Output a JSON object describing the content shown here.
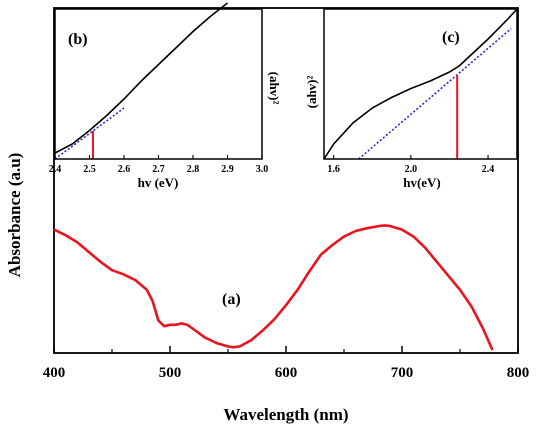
{
  "chart_data": [
    {
      "panel": "(a)",
      "type": "line",
      "xlabel": "Wavelength (nm)",
      "ylabel": "Absorbance (a.u)",
      "xlim": [
        400,
        800
      ],
      "x_ticks": [
        "400",
        "500",
        "600",
        "700",
        "800"
      ],
      "y_ticks_shown": false,
      "grid": false,
      "series": [
        {
          "color": "#e8141e",
          "x": [
            400,
            410,
            420,
            430,
            440,
            450,
            460,
            470,
            480,
            485,
            490,
            495,
            500,
            505,
            510,
            515,
            520,
            525,
            530,
            540,
            550,
            555,
            560,
            570,
            580,
            590,
            600,
            610,
            620,
            630,
            640,
            650,
            660,
            670,
            680,
            685,
            690,
            700,
            710,
            720,
            730,
            740,
            750,
            760,
            770,
            778
          ],
          "y": [
            0.86,
            0.82,
            0.77,
            0.7,
            0.63,
            0.57,
            0.54,
            0.5,
            0.43,
            0.35,
            0.21,
            0.17,
            0.18,
            0.18,
            0.19,
            0.18,
            0.15,
            0.12,
            0.09,
            0.05,
            0.025,
            0.02,
            0.025,
            0.07,
            0.14,
            0.22,
            0.32,
            0.43,
            0.56,
            0.68,
            0.75,
            0.81,
            0.85,
            0.87,
            0.885,
            0.89,
            0.885,
            0.86,
            0.81,
            0.73,
            0.63,
            0.53,
            0.43,
            0.31,
            0.15,
            0.0
          ]
        }
      ]
    },
    {
      "panel": "(b)",
      "type": "line",
      "xlabel": "hv (eV)",
      "ylabel": "(ahv)²",
      "xlim": [
        2.4,
        3.0
      ],
      "x_ticks": [
        "2.4",
        "2.5",
        "2.6",
        "2.7",
        "2.8",
        "2.9",
        "3.0"
      ],
      "grid": false,
      "series": [
        {
          "style": "solid",
          "color": "#000000",
          "x": [
            2.4,
            2.45,
            2.5,
            2.55,
            2.6,
            2.65,
            2.7,
            2.75,
            2.8,
            2.85,
            2.9
          ],
          "y": [
            0.04,
            0.1,
            0.19,
            0.29,
            0.4,
            0.52,
            0.63,
            0.74,
            0.85,
            0.95,
            1.04
          ]
        },
        {
          "style": "dotted",
          "color": "#2a2ad6",
          "x": [
            2.4,
            2.6
          ],
          "y": [
            0.0,
            0.34
          ]
        }
      ],
      "marker": {
        "color": "#e8141e",
        "x": 2.51,
        "label": ""
      }
    },
    {
      "panel": "(c)",
      "type": "line",
      "xlabel": "hv(eV)",
      "ylabel": "(ahv)²",
      "xlim": [
        1.55,
        2.55
      ],
      "x_ticks": [
        "1.6",
        "2.0",
        "2.4"
      ],
      "grid": false,
      "series": [
        {
          "style": "solid",
          "color": "#000000",
          "x": [
            1.55,
            1.6,
            1.7,
            1.8,
            1.9,
            2.0,
            2.1,
            2.2,
            2.25,
            2.3,
            2.4,
            2.5,
            2.55
          ],
          "y": [
            0.0,
            0.1,
            0.24,
            0.34,
            0.41,
            0.47,
            0.52,
            0.58,
            0.62,
            0.68,
            0.8,
            0.93,
            1.0
          ]
        },
        {
          "style": "dotted",
          "color": "#2a2ad6",
          "x": [
            1.73,
            2.52
          ],
          "y": [
            0.0,
            0.87
          ]
        }
      ],
      "marker": {
        "color": "#e8141e",
        "x": 2.24,
        "label": ""
      }
    }
  ]
}
